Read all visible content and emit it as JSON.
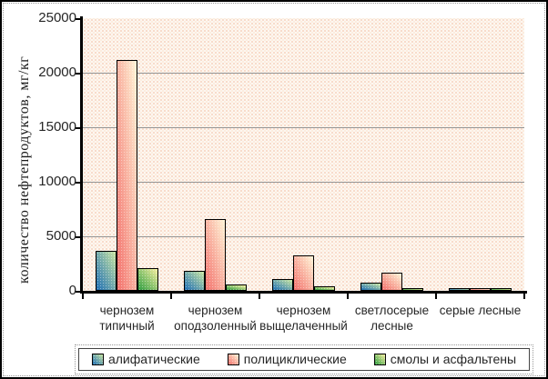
{
  "chart_data": {
    "type": "bar",
    "title": "",
    "ylabel": "количество нефтепродуктов, мг/кг",
    "xlabel": "",
    "ylim": [
      0,
      25000
    ],
    "yticks": [
      0,
      5000,
      10000,
      15000,
      20000,
      25000
    ],
    "grid": true,
    "legend_position": "bottom",
    "plot_background": "#fdf7f1 with pink dot pattern",
    "gridline_color": "#949494",
    "categories": [
      "чернозем типичный",
      "чернозем оподзоленный",
      "чернозем выщелаченный",
      "светлосерые лесные",
      "серые лесные"
    ],
    "series": [
      {
        "name": "алифатические",
        "values": [
          3500,
          1700,
          950,
          600,
          60
        ],
        "color_from": "#1f6fb5",
        "color_to": "#c9e6a1"
      },
      {
        "name": "полициклические",
        "values": [
          21000,
          6400,
          3100,
          1500,
          110
        ],
        "color_from": "#f3706b",
        "color_to": "#fff6d8"
      },
      {
        "name": "смолы и асфальтены",
        "values": [
          1900,
          450,
          280,
          120,
          40
        ],
        "color_from": "#2f9e41",
        "color_to": "#f6efa0"
      }
    ]
  }
}
